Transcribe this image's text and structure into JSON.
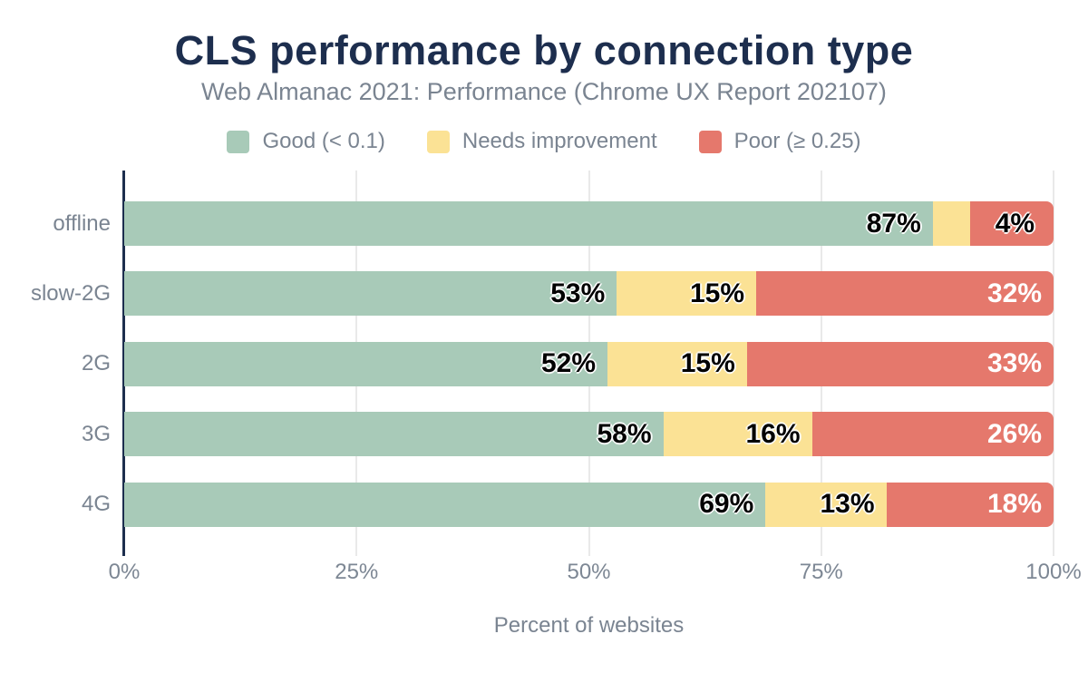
{
  "chart_data": {
    "type": "bar",
    "variant": "horizontal-stacked",
    "title": "CLS performance by connection type",
    "subtitle": "Web Almanac 2021: Performance (Chrome UX Report 202107)",
    "xlabel": "Percent of websites",
    "xlim": [
      0,
      100
    ],
    "x_ticks": [
      {
        "label": "0%",
        "value": 0
      },
      {
        "label": "25%",
        "value": 25
      },
      {
        "label": "50%",
        "value": 50
      },
      {
        "label": "75%",
        "value": 75
      },
      {
        "label": "100%",
        "value": 100
      }
    ],
    "grid": "vertical",
    "legend_position": "top",
    "legend": [
      {
        "key": "good",
        "label": "Good (< 0.1)",
        "color": "#a8cab8"
      },
      {
        "key": "needs-improvement",
        "label": "Needs improvement",
        "color": "#fbe295"
      },
      {
        "key": "poor",
        "label": "Poor (≥ 0.25)",
        "color": "#e5786c"
      }
    ],
    "categories": [
      "offline",
      "slow-2G",
      "2G",
      "3G",
      "4G"
    ],
    "series": [
      {
        "name": "Good (< 0.1)",
        "key": "good",
        "color": "#a8cab8",
        "values": [
          87,
          53,
          52,
          58,
          69
        ]
      },
      {
        "name": "Needs improvement",
        "key": "needs-improvement",
        "color": "#fbe295",
        "values": [
          4,
          15,
          15,
          16,
          13
        ]
      },
      {
        "name": "Poor (≥ 0.25)",
        "key": "poor",
        "color": "#e5786c",
        "values": [
          9,
          32,
          33,
          26,
          18
        ]
      }
    ],
    "rows": [
      {
        "category": "offline",
        "segments": [
          {
            "value": 87,
            "label": "87%",
            "placement": "inside",
            "ink": "dark"
          },
          {
            "value": 4,
            "label": "4%",
            "placement": "outside",
            "ink": "dark"
          },
          {
            "value": 9,
            "label": "",
            "placement": "none",
            "ink": "light"
          }
        ]
      },
      {
        "category": "slow-2G",
        "segments": [
          {
            "value": 53,
            "label": "53%",
            "placement": "inside",
            "ink": "dark"
          },
          {
            "value": 15,
            "label": "15%",
            "placement": "inside",
            "ink": "dark"
          },
          {
            "value": 32,
            "label": "32%",
            "placement": "inside",
            "ink": "light"
          }
        ]
      },
      {
        "category": "2G",
        "segments": [
          {
            "value": 52,
            "label": "52%",
            "placement": "inside",
            "ink": "dark"
          },
          {
            "value": 15,
            "label": "15%",
            "placement": "inside",
            "ink": "dark"
          },
          {
            "value": 33,
            "label": "33%",
            "placement": "inside",
            "ink": "light"
          }
        ]
      },
      {
        "category": "3G",
        "segments": [
          {
            "value": 58,
            "label": "58%",
            "placement": "inside",
            "ink": "dark"
          },
          {
            "value": 16,
            "label": "16%",
            "placement": "inside",
            "ink": "dark"
          },
          {
            "value": 26,
            "label": "26%",
            "placement": "inside",
            "ink": "light"
          }
        ]
      },
      {
        "category": "4G",
        "segments": [
          {
            "value": 69,
            "label": "69%",
            "placement": "inside",
            "ink": "dark"
          },
          {
            "value": 13,
            "label": "13%",
            "placement": "inside",
            "ink": "dark"
          },
          {
            "value": 18,
            "label": "18%",
            "placement": "inside",
            "ink": "light"
          }
        ]
      }
    ],
    "colors": {
      "title": "#1d2e4e",
      "muted_text": "#7a8491",
      "axis_line": "#1d2e4e",
      "gridline": "#e9e9e9",
      "label_dark": "#000000",
      "label_light": "#ffffff"
    }
  }
}
